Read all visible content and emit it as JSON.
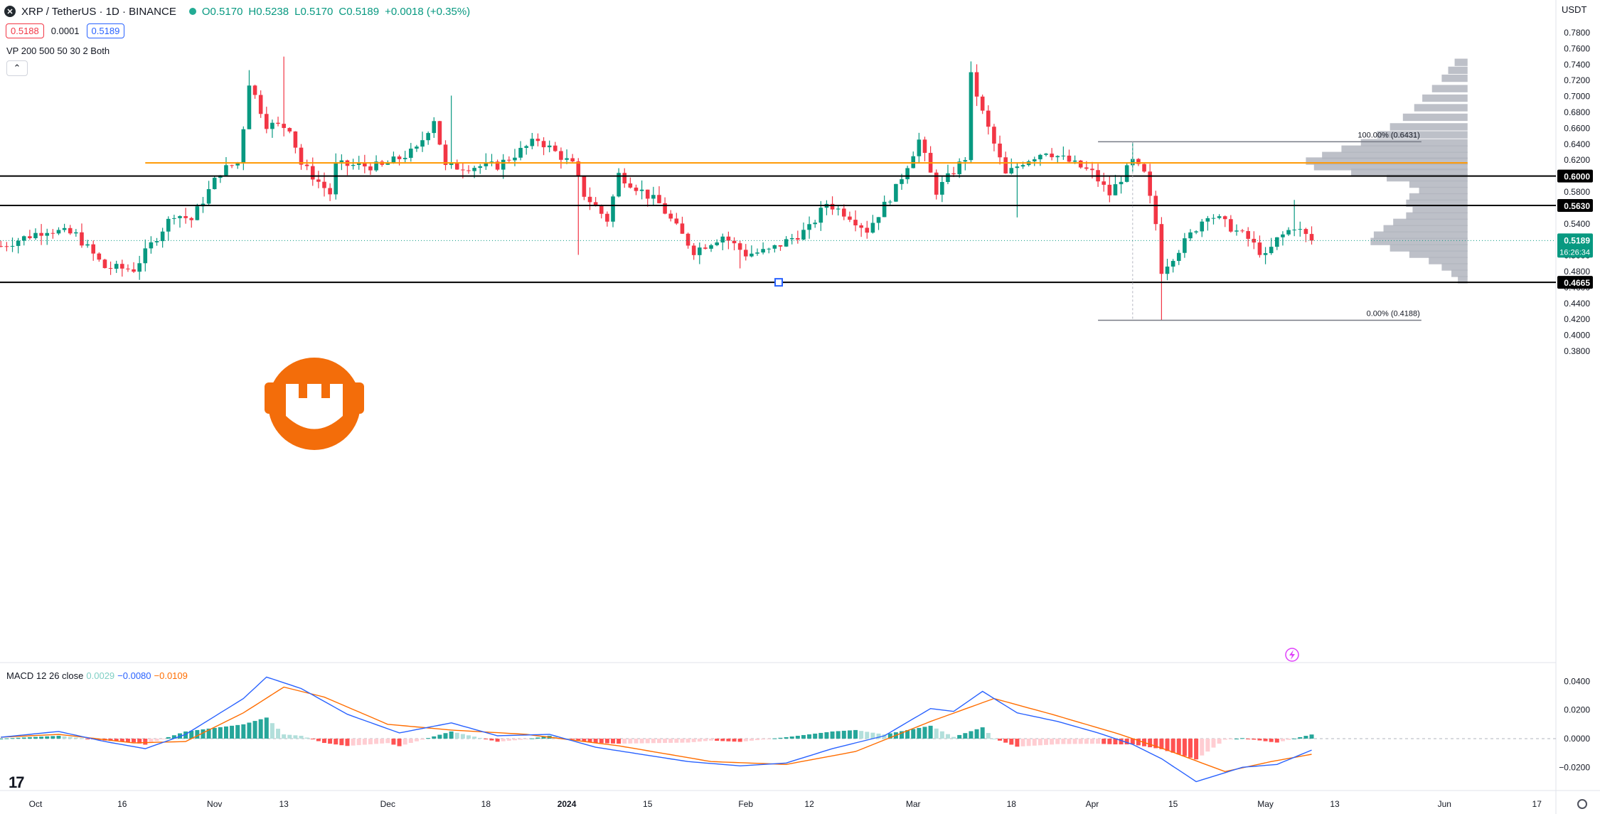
{
  "header": {
    "symbol": "XRP / TetherUS · 1D · BINANCE",
    "open": "O0.5170",
    "high": "H0.5238",
    "low": "L0.5170",
    "close": "C0.5189",
    "change": "+0.0018 (+0.35%)",
    "bid": "0.5188",
    "spread": "0.0001",
    "ask": "0.5189",
    "indicator_vp": "VP 200 500 50 30 2 Both",
    "currency": "USDT"
  },
  "macd_legend": {
    "label": "MACD 12 26 close",
    "hist": "0.0029",
    "macd": "−0.0080",
    "signal": "−0.0109"
  },
  "colors": {
    "up": "#089981",
    "down": "#f23645",
    "orange": "#ff9800",
    "macd_line": "#2962ff",
    "signal_line": "#ff6d00",
    "hist_up_strong": "#26a69a",
    "hist_up_weak": "#b2dfdb",
    "hist_down_strong": "#ff5252",
    "hist_down_weak": "#ffcdd2",
    "vp": "#b2b5be",
    "watermark": "#f36d0a"
  },
  "icons": [
    "xrp-logo-icon",
    "status-dot-icon",
    "collapse-chevron-icon",
    "tradingview-logo-icon",
    "settings-gear-icon",
    "lightning-icon",
    "watermark-logo-icon"
  ],
  "chart_data": {
    "type": "candlestick",
    "main_axis": {
      "ticks": [
        "0.7800",
        "0.7600",
        "0.7400",
        "0.7200",
        "0.7000",
        "0.6800",
        "0.6600",
        "0.6400",
        "0.6200",
        "0.6000",
        "0.5800",
        "0.5600",
        "0.5400",
        "0.5200",
        "0.5000",
        "0.4800",
        "0.4600",
        "0.4400",
        "0.4200",
        "0.4000",
        "0.3800"
      ],
      "range": [
        0.373,
        0.789
      ]
    },
    "x_axis_labels": [
      {
        "label": "Oct",
        "date": "2023-10-01"
      },
      {
        "label": "16",
        "date": "2023-10-16"
      },
      {
        "label": "Nov",
        "date": "2023-11-01"
      },
      {
        "label": "13",
        "date": "2023-11-13"
      },
      {
        "label": "Dec",
        "date": "2023-12-01"
      },
      {
        "label": "18",
        "date": "2023-12-18"
      },
      {
        "label": "2024",
        "date": "2024-01-01"
      },
      {
        "label": "15",
        "date": "2024-01-15"
      },
      {
        "label": "Feb",
        "date": "2024-02-01"
      },
      {
        "label": "12",
        "date": "2024-02-12"
      },
      {
        "label": "Mar",
        "date": "2024-03-01"
      },
      {
        "label": "18",
        "date": "2024-03-18"
      },
      {
        "label": "Apr",
        "date": "2024-04-01"
      },
      {
        "label": "15",
        "date": "2024-04-15"
      },
      {
        "label": "May",
        "date": "2024-05-01"
      },
      {
        "label": "13",
        "date": "2024-05-13"
      },
      {
        "label": "Jun",
        "date": "2024-06-01"
      },
      {
        "label": "17",
        "date": "2024-06-17"
      }
    ],
    "candle_anchors": {
      "first_date": "2023-09-25",
      "first_open": 0.512,
      "last_date": "2024-05-09",
      "last_close": 0.5189
    },
    "close_waypoints": [
      {
        "date": "2023-09-25",
        "close": 0.512
      },
      {
        "date": "2023-10-03",
        "close": 0.533
      },
      {
        "date": "2023-10-08",
        "close": 0.526
      },
      {
        "date": "2023-10-13",
        "close": 0.485
      },
      {
        "date": "2023-10-18",
        "close": 0.483
      },
      {
        "date": "2023-10-22",
        "close": 0.524
      },
      {
        "date": "2023-10-25",
        "close": 0.553
      },
      {
        "date": "2023-10-28",
        "close": 0.545
      },
      {
        "date": "2023-11-02",
        "close": 0.606
      },
      {
        "date": "2023-11-05",
        "close": 0.617
      },
      {
        "date": "2023-11-06",
        "close": 0.662
      },
      {
        "date": "2023-11-07",
        "close": 0.718
      },
      {
        "date": "2023-11-10",
        "close": 0.665
      },
      {
        "date": "2023-11-14",
        "close": 0.661
      },
      {
        "date": "2023-11-16",
        "close": 0.615
      },
      {
        "date": "2023-11-21",
        "close": 0.578
      },
      {
        "date": "2023-11-22",
        "close": 0.614
      },
      {
        "date": "2023-11-30",
        "close": 0.612
      },
      {
        "date": "2023-12-06",
        "close": 0.633
      },
      {
        "date": "2023-12-09",
        "close": 0.672
      },
      {
        "date": "2023-12-11",
        "close": 0.611
      },
      {
        "date": "2023-12-20",
        "close": 0.613
      },
      {
        "date": "2023-12-27",
        "close": 0.646
      },
      {
        "date": "2024-01-02",
        "close": 0.614
      },
      {
        "date": "2024-01-04",
        "close": 0.577
      },
      {
        "date": "2024-01-08",
        "close": 0.545
      },
      {
        "date": "2024-01-10",
        "close": 0.602
      },
      {
        "date": "2024-01-17",
        "close": 0.565
      },
      {
        "date": "2024-01-20",
        "close": 0.535
      },
      {
        "date": "2024-01-23",
        "close": 0.506
      },
      {
        "date": "2024-01-28",
        "close": 0.525
      },
      {
        "date": "2024-02-01",
        "close": 0.502
      },
      {
        "date": "2024-02-05",
        "close": 0.506
      },
      {
        "date": "2024-02-12",
        "close": 0.534
      },
      {
        "date": "2024-02-15",
        "close": 0.566
      },
      {
        "date": "2024-02-19",
        "close": 0.55
      },
      {
        "date": "2024-02-22",
        "close": 0.532
      },
      {
        "date": "2024-02-27",
        "close": 0.584
      },
      {
        "date": "2024-03-02",
        "close": 0.645
      },
      {
        "date": "2024-03-05",
        "close": 0.581
      },
      {
        "date": "2024-03-10",
        "close": 0.623
      },
      {
        "date": "2024-03-11",
        "close": 0.725
      },
      {
        "date": "2024-03-13",
        "close": 0.679
      },
      {
        "date": "2024-03-17",
        "close": 0.601
      },
      {
        "date": "2024-03-20",
        "close": 0.618
      },
      {
        "date": "2024-03-24",
        "close": 0.632
      },
      {
        "date": "2024-04-01",
        "close": 0.604
      },
      {
        "date": "2024-04-04",
        "close": 0.577
      },
      {
        "date": "2024-04-08",
        "close": 0.618
      },
      {
        "date": "2024-04-10",
        "close": 0.602
      },
      {
        "date": "2024-04-12",
        "close": 0.54
      },
      {
        "date": "2024-04-13",
        "close": 0.482
      },
      {
        "date": "2024-04-16",
        "close": 0.508
      },
      {
        "date": "2024-04-21",
        "close": 0.553
      },
      {
        "date": "2024-04-23",
        "close": 0.545
      },
      {
        "date": "2024-04-28",
        "close": 0.521
      },
      {
        "date": "2024-05-01",
        "close": 0.498
      },
      {
        "date": "2024-05-03",
        "close": 0.52
      },
      {
        "date": "2024-05-06",
        "close": 0.537
      },
      {
        "date": "2024-05-09",
        "close": 0.5189
      }
    ],
    "notable_wicks": [
      {
        "date": "2023-11-07",
        "high": 0.733
      },
      {
        "date": "2023-11-13",
        "high": 0.75
      },
      {
        "date": "2023-12-12",
        "high": 0.701
      },
      {
        "date": "2024-01-03",
        "low": 0.501
      },
      {
        "date": "2024-01-31",
        "low": 0.484
      },
      {
        "date": "2024-03-11",
        "high": 0.744
      },
      {
        "date": "2024-03-19",
        "low": 0.548
      },
      {
        "date": "2024-04-08",
        "high": 0.6431
      },
      {
        "date": "2024-04-13",
        "low": 0.4188
      },
      {
        "date": "2024-05-06",
        "high": 0.57
      }
    ],
    "horizontal_levels": [
      {
        "price": 0.6,
        "label": "0.6000",
        "color": "#000000"
      },
      {
        "price": 0.563,
        "label": "0.5630",
        "color": "#000000"
      },
      {
        "price": 0.4665,
        "label": "0.4665",
        "color": "#000000"
      }
    ],
    "orange_level": {
      "price": 0.6165,
      "from": "2023-10-20",
      "to": "2024-06-05"
    },
    "fib_levels": [
      {
        "label": "100.00% (0.6431)",
        "price": 0.6431,
        "from": "2024-04-02",
        "to": "2024-05-28"
      },
      {
        "label": "0.00% (0.4188)",
        "price": 0.4188,
        "from": "2024-04-02",
        "to": "2024-05-28"
      }
    ],
    "current_price": {
      "label": "0.5189",
      "countdown": "16:26:34",
      "price": 0.5189
    },
    "volume_profile": {
      "price_min": 0.464,
      "price_max": 0.745,
      "max_date": "2024-06-05",
      "scale_days": 28,
      "rows": [
        {
          "p": 0.743,
          "w": 0.08
        },
        {
          "p": 0.733,
          "w": 0.12
        },
        {
          "p": 0.723,
          "w": 0.16
        },
        {
          "p": 0.71,
          "w": 0.22
        },
        {
          "p": 0.698,
          "w": 0.28
        },
        {
          "p": 0.686,
          "w": 0.33
        },
        {
          "p": 0.674,
          "w": 0.4
        },
        {
          "p": 0.662,
          "w": 0.48
        },
        {
          "p": 0.652,
          "w": 0.56
        },
        {
          "p": 0.642,
          "w": 0.66
        },
        {
          "p": 0.634,
          "w": 0.78
        },
        {
          "p": 0.626,
          "w": 0.9
        },
        {
          "p": 0.619,
          "w": 1.0
        },
        {
          "p": 0.612,
          "w": 0.95
        },
        {
          "p": 0.605,
          "w": 0.72
        },
        {
          "p": 0.598,
          "w": 0.5
        },
        {
          "p": 0.59,
          "w": 0.36
        },
        {
          "p": 0.582,
          "w": 0.3
        },
        {
          "p": 0.574,
          "w": 0.36
        },
        {
          "p": 0.566,
          "w": 0.38
        },
        {
          "p": 0.558,
          "w": 0.34
        },
        {
          "p": 0.55,
          "w": 0.38
        },
        {
          "p": 0.542,
          "w": 0.46
        },
        {
          "p": 0.534,
          "w": 0.52
        },
        {
          "p": 0.526,
          "w": 0.58
        },
        {
          "p": 0.518,
          "w": 0.6
        },
        {
          "p": 0.51,
          "w": 0.48
        },
        {
          "p": 0.502,
          "w": 0.36
        },
        {
          "p": 0.494,
          "w": 0.24
        },
        {
          "p": 0.486,
          "w": 0.16
        },
        {
          "p": 0.478,
          "w": 0.1
        },
        {
          "p": 0.47,
          "w": 0.06
        }
      ]
    },
    "macd": {
      "axis_ticks": [
        "0.0400",
        "0.0200",
        "0.0000",
        "−0.0200"
      ],
      "range": [
        -0.033,
        0.046
      ],
      "macd_waypoints": [
        {
          "date": "2023-09-25",
          "v": 0.001
        },
        {
          "date": "2023-10-05",
          "v": 0.005
        },
        {
          "date": "2023-10-13",
          "v": -0.002
        },
        {
          "date": "2023-10-20",
          "v": -0.007
        },
        {
          "date": "2023-10-27",
          "v": 0.003
        },
        {
          "date": "2023-11-06",
          "v": 0.028
        },
        {
          "date": "2023-11-10",
          "v": 0.043
        },
        {
          "date": "2023-11-16",
          "v": 0.035
        },
        {
          "date": "2023-11-24",
          "v": 0.017
        },
        {
          "date": "2023-12-03",
          "v": 0.004
        },
        {
          "date": "2023-12-12",
          "v": 0.011
        },
        {
          "date": "2023-12-20",
          "v": 0.002
        },
        {
          "date": "2023-12-29",
          "v": 0.003
        },
        {
          "date": "2024-01-06",
          "v": -0.006
        },
        {
          "date": "2024-01-14",
          "v": -0.011
        },
        {
          "date": "2024-01-22",
          "v": -0.016
        },
        {
          "date": "2024-01-31",
          "v": -0.019
        },
        {
          "date": "2024-02-08",
          "v": -0.017
        },
        {
          "date": "2024-02-16",
          "v": -0.007
        },
        {
          "date": "2024-02-25",
          "v": 0.002
        },
        {
          "date": "2024-03-04",
          "v": 0.021
        },
        {
          "date": "2024-03-08",
          "v": 0.019
        },
        {
          "date": "2024-03-13",
          "v": 0.033
        },
        {
          "date": "2024-03-19",
          "v": 0.018
        },
        {
          "date": "2024-03-26",
          "v": 0.012
        },
        {
          "date": "2024-04-02",
          "v": 0.004
        },
        {
          "date": "2024-04-08",
          "v": -0.004
        },
        {
          "date": "2024-04-13",
          "v": -0.014
        },
        {
          "date": "2024-04-19",
          "v": -0.03
        },
        {
          "date": "2024-04-27",
          "v": -0.02
        },
        {
          "date": "2024-05-03",
          "v": -0.018
        },
        {
          "date": "2024-05-09",
          "v": -0.008
        }
      ],
      "signal_waypoints": [
        {
          "date": "2023-09-25",
          "v": 0.001
        },
        {
          "date": "2023-10-05",
          "v": 0.003
        },
        {
          "date": "2023-10-18",
          "v": -0.003
        },
        {
          "date": "2023-10-27",
          "v": -0.002
        },
        {
          "date": "2023-11-06",
          "v": 0.018
        },
        {
          "date": "2023-11-13",
          "v": 0.036
        },
        {
          "date": "2023-11-20",
          "v": 0.029
        },
        {
          "date": "2023-12-01",
          "v": 0.01
        },
        {
          "date": "2023-12-12",
          "v": 0.006
        },
        {
          "date": "2023-12-25",
          "v": 0.003
        },
        {
          "date": "2024-01-10",
          "v": -0.005
        },
        {
          "date": "2024-01-26",
          "v": -0.016
        },
        {
          "date": "2024-02-08",
          "v": -0.018
        },
        {
          "date": "2024-02-20",
          "v": -0.009
        },
        {
          "date": "2024-03-04",
          "v": 0.012
        },
        {
          "date": "2024-03-15",
          "v": 0.028
        },
        {
          "date": "2024-03-25",
          "v": 0.017
        },
        {
          "date": "2024-04-05",
          "v": 0.004
        },
        {
          "date": "2024-04-14",
          "v": -0.008
        },
        {
          "date": "2024-04-24",
          "v": -0.023
        },
        {
          "date": "2024-05-02",
          "v": -0.016
        },
        {
          "date": "2024-05-09",
          "v": -0.0109
        }
      ],
      "legend_values": {
        "hist": 0.0029,
        "macd": -0.008,
        "signal": -0.0109
      }
    }
  }
}
